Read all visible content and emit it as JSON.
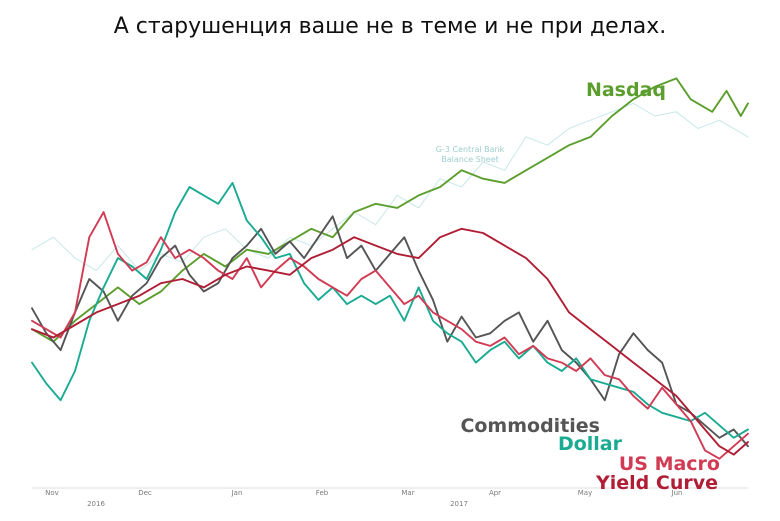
{
  "title": "А старушенция ваше не в теме и не при делах.",
  "chart_data": {
    "type": "line",
    "title": "А старушенция ваше не в теме и не при делах.",
    "xlabel": "",
    "ylabel": "",
    "x_ticks": [
      "Nov",
      "Dec",
      "Jan",
      "Feb",
      "Mar",
      "Apr",
      "May",
      "Jun"
    ],
    "year_labels": [
      {
        "after_tick": "Nov",
        "text": "2016"
      },
      {
        "after_tick": "Mar",
        "text": "2017"
      }
    ],
    "ylim": [
      0,
      100
    ],
    "grid": false,
    "annotations": [
      "G-3 Central Bank",
      "Balance Sheet"
    ],
    "series": [
      {
        "name": "G-3 Central Bank Balance Sheet",
        "color": "#c8e8e8",
        "values": [
          [
            0,
            57
          ],
          [
            3,
            60
          ],
          [
            6,
            55
          ],
          [
            9,
            52
          ],
          [
            12,
            58
          ],
          [
            15,
            52
          ],
          [
            18,
            56
          ],
          [
            21,
            54
          ],
          [
            24,
            60
          ],
          [
            27,
            62
          ],
          [
            30,
            57
          ],
          [
            33,
            55
          ],
          [
            36,
            60
          ],
          [
            39,
            58
          ],
          [
            42,
            62
          ],
          [
            45,
            66
          ],
          [
            48,
            63
          ],
          [
            51,
            70
          ],
          [
            54,
            67
          ],
          [
            57,
            74
          ],
          [
            60,
            72
          ],
          [
            63,
            78
          ],
          [
            66,
            76
          ],
          [
            69,
            84
          ],
          [
            72,
            82
          ],
          [
            75,
            86
          ],
          [
            78,
            88
          ],
          [
            81,
            90
          ],
          [
            84,
            92
          ],
          [
            87,
            89
          ],
          [
            90,
            90
          ],
          [
            93,
            86
          ],
          [
            96,
            88
          ],
          [
            100,
            84
          ]
        ]
      },
      {
        "name": "Nasdaq",
        "color": "#5c9e2d",
        "values": [
          [
            0,
            38
          ],
          [
            3,
            35
          ],
          [
            6,
            40
          ],
          [
            9,
            44
          ],
          [
            12,
            48
          ],
          [
            15,
            44
          ],
          [
            18,
            47
          ],
          [
            21,
            52
          ],
          [
            24,
            56
          ],
          [
            27,
            53
          ],
          [
            30,
            57
          ],
          [
            33,
            56
          ],
          [
            36,
            59
          ],
          [
            39,
            62
          ],
          [
            42,
            60
          ],
          [
            45,
            66
          ],
          [
            48,
            68
          ],
          [
            51,
            67
          ],
          [
            54,
            70
          ],
          [
            57,
            72
          ],
          [
            60,
            76
          ],
          [
            63,
            74
          ],
          [
            66,
            73
          ],
          [
            69,
            76
          ],
          [
            72,
            79
          ],
          [
            75,
            82
          ],
          [
            78,
            84
          ],
          [
            81,
            89
          ],
          [
            84,
            93
          ],
          [
            87,
            96
          ],
          [
            90,
            98
          ],
          [
            92,
            93
          ],
          [
            95,
            90
          ],
          [
            97,
            95
          ],
          [
            99,
            89
          ],
          [
            100,
            92
          ]
        ]
      },
      {
        "name": "Commodities",
        "color": "#555555",
        "values": [
          [
            0,
            43
          ],
          [
            2,
            37
          ],
          [
            4,
            33
          ],
          [
            6,
            42
          ],
          [
            8,
            50
          ],
          [
            10,
            47
          ],
          [
            12,
            40
          ],
          [
            14,
            46
          ],
          [
            16,
            49
          ],
          [
            18,
            55
          ],
          [
            20,
            58
          ],
          [
            22,
            51
          ],
          [
            24,
            47
          ],
          [
            26,
            49
          ],
          [
            28,
            55
          ],
          [
            30,
            58
          ],
          [
            32,
            62
          ],
          [
            34,
            56
          ],
          [
            36,
            59
          ],
          [
            38,
            55
          ],
          [
            40,
            60
          ],
          [
            42,
            65
          ],
          [
            44,
            55
          ],
          [
            46,
            58
          ],
          [
            48,
            52
          ],
          [
            50,
            56
          ],
          [
            52,
            60
          ],
          [
            54,
            52
          ],
          [
            56,
            45
          ],
          [
            58,
            35
          ],
          [
            60,
            41
          ],
          [
            62,
            36
          ],
          [
            64,
            37
          ],
          [
            66,
            40
          ],
          [
            68,
            42
          ],
          [
            70,
            35
          ],
          [
            72,
            40
          ],
          [
            74,
            33
          ],
          [
            76,
            30
          ],
          [
            78,
            26
          ],
          [
            80,
            21
          ],
          [
            82,
            32
          ],
          [
            84,
            37
          ],
          [
            86,
            33
          ],
          [
            88,
            30
          ],
          [
            90,
            20
          ],
          [
            92,
            18
          ],
          [
            94,
            15
          ],
          [
            96,
            12
          ],
          [
            98,
            14
          ],
          [
            100,
            10
          ]
        ]
      },
      {
        "name": "Dollar",
        "color": "#1aab92",
        "values": [
          [
            0,
            30
          ],
          [
            2,
            25
          ],
          [
            4,
            21
          ],
          [
            6,
            28
          ],
          [
            8,
            40
          ],
          [
            10,
            48
          ],
          [
            12,
            55
          ],
          [
            14,
            53
          ],
          [
            16,
            50
          ],
          [
            18,
            57
          ],
          [
            20,
            66
          ],
          [
            22,
            72
          ],
          [
            24,
            70
          ],
          [
            26,
            68
          ],
          [
            28,
            73
          ],
          [
            30,
            64
          ],
          [
            32,
            60
          ],
          [
            34,
            55
          ],
          [
            36,
            56
          ],
          [
            38,
            49
          ],
          [
            40,
            45
          ],
          [
            42,
            48
          ],
          [
            44,
            44
          ],
          [
            46,
            46
          ],
          [
            48,
            44
          ],
          [
            50,
            46
          ],
          [
            52,
            40
          ],
          [
            54,
            48
          ],
          [
            56,
            40
          ],
          [
            58,
            37
          ],
          [
            60,
            35
          ],
          [
            62,
            30
          ],
          [
            64,
            33
          ],
          [
            66,
            35
          ],
          [
            68,
            31
          ],
          [
            70,
            34
          ],
          [
            72,
            30
          ],
          [
            74,
            28
          ],
          [
            76,
            31
          ],
          [
            78,
            26
          ],
          [
            80,
            25
          ],
          [
            82,
            24
          ],
          [
            84,
            23
          ],
          [
            86,
            20
          ],
          [
            88,
            18
          ],
          [
            90,
            17
          ],
          [
            92,
            16
          ],
          [
            94,
            18
          ],
          [
            96,
            15
          ],
          [
            98,
            12
          ],
          [
            100,
            14
          ]
        ]
      },
      {
        "name": "US Macro",
        "color": "#d13b54",
        "values": [
          [
            0,
            40
          ],
          [
            2,
            38
          ],
          [
            4,
            36
          ],
          [
            6,
            42
          ],
          [
            8,
            60
          ],
          [
            10,
            66
          ],
          [
            12,
            56
          ],
          [
            14,
            52
          ],
          [
            16,
            54
          ],
          [
            18,
            60
          ],
          [
            20,
            55
          ],
          [
            22,
            57
          ],
          [
            24,
            55
          ],
          [
            26,
            52
          ],
          [
            28,
            50
          ],
          [
            30,
            55
          ],
          [
            32,
            48
          ],
          [
            34,
            52
          ],
          [
            36,
            55
          ],
          [
            38,
            53
          ],
          [
            40,
            50
          ],
          [
            42,
            48
          ],
          [
            44,
            46
          ],
          [
            46,
            50
          ],
          [
            48,
            52
          ],
          [
            50,
            48
          ],
          [
            52,
            44
          ],
          [
            54,
            46
          ],
          [
            56,
            42
          ],
          [
            58,
            40
          ],
          [
            60,
            38
          ],
          [
            62,
            35
          ],
          [
            64,
            34
          ],
          [
            66,
            36
          ],
          [
            68,
            32
          ],
          [
            70,
            34
          ],
          [
            72,
            31
          ],
          [
            74,
            30
          ],
          [
            76,
            28
          ],
          [
            78,
            31
          ],
          [
            80,
            27
          ],
          [
            82,
            26
          ],
          [
            84,
            22
          ],
          [
            86,
            19
          ],
          [
            88,
            24
          ],
          [
            90,
            20
          ],
          [
            92,
            16
          ],
          [
            94,
            9
          ],
          [
            96,
            7
          ],
          [
            98,
            10
          ],
          [
            100,
            13
          ]
        ]
      },
      {
        "name": "Yield Curve",
        "color": "#b01e35",
        "values": [
          [
            0,
            38
          ],
          [
            3,
            36
          ],
          [
            6,
            39
          ],
          [
            9,
            42
          ],
          [
            12,
            44
          ],
          [
            15,
            46
          ],
          [
            18,
            49
          ],
          [
            21,
            50
          ],
          [
            24,
            48
          ],
          [
            27,
            51
          ],
          [
            30,
            53
          ],
          [
            33,
            52
          ],
          [
            36,
            51
          ],
          [
            39,
            55
          ],
          [
            42,
            57
          ],
          [
            45,
            60
          ],
          [
            48,
            58
          ],
          [
            51,
            56
          ],
          [
            54,
            55
          ],
          [
            57,
            60
          ],
          [
            60,
            62
          ],
          [
            63,
            61
          ],
          [
            66,
            58
          ],
          [
            69,
            55
          ],
          [
            72,
            50
          ],
          [
            75,
            42
          ],
          [
            78,
            38
          ],
          [
            81,
            34
          ],
          [
            84,
            30
          ],
          [
            87,
            26
          ],
          [
            90,
            22
          ],
          [
            92,
            18
          ],
          [
            94,
            14
          ],
          [
            96,
            10
          ],
          [
            98,
            8
          ],
          [
            100,
            11
          ]
        ]
      }
    ]
  }
}
